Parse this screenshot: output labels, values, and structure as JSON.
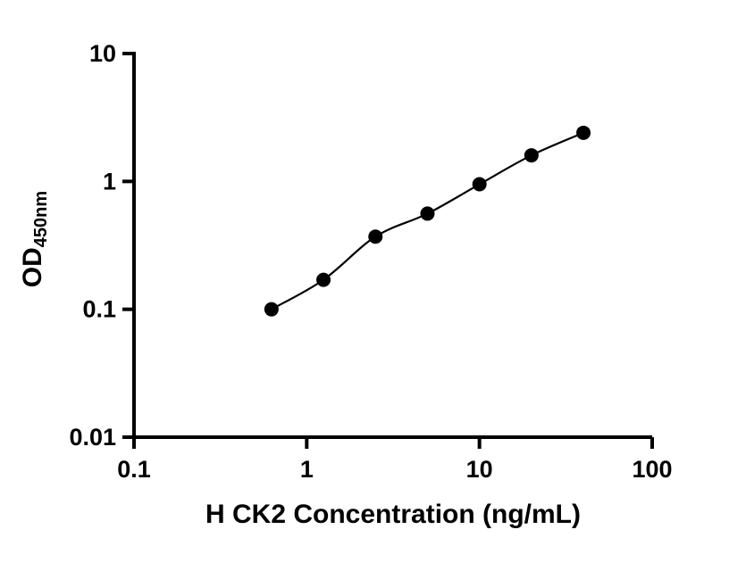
{
  "figure": {
    "background_color": "#ffffff"
  },
  "chart_data": {
    "type": "scatter",
    "title": "",
    "xlabel": "H CK2 Concentration (ng/mL)",
    "ylabel": "OD",
    "ylabel_subscript": "450nm",
    "x_scale": "log",
    "y_scale": "log",
    "xlim": [
      0.1,
      100
    ],
    "ylim": [
      0.01,
      10
    ],
    "grid": false,
    "legend": "none",
    "x_ticks": [
      {
        "value": 0.1,
        "label": "0.1"
      },
      {
        "value": 1,
        "label": "1"
      },
      {
        "value": 10,
        "label": "10"
      },
      {
        "value": 100,
        "label": "100"
      }
    ],
    "y_ticks": [
      {
        "value": 0.01,
        "label": "0.01"
      },
      {
        "value": 0.1,
        "label": "0.1"
      },
      {
        "value": 1,
        "label": "1"
      },
      {
        "value": 10,
        "label": "10"
      }
    ],
    "series": [
      {
        "x": [
          0.625,
          1.25,
          2.5,
          5,
          10,
          20,
          40
        ],
        "y": [
          0.1,
          0.17,
          0.37,
          0.56,
          0.95,
          1.6,
          2.4
        ]
      }
    ],
    "axis_color": "#000000",
    "line_color": "#000000",
    "marker_color": "#000000"
  }
}
